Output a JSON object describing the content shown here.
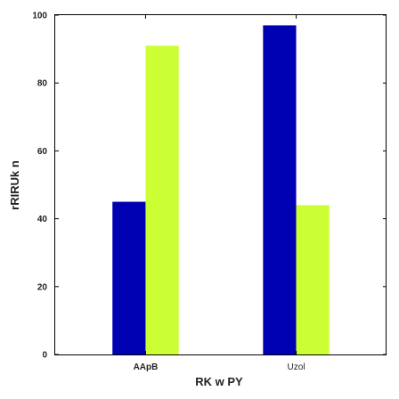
{
  "chart_data": {
    "type": "bar",
    "categories": [
      "AApB",
      "Uzol"
    ],
    "series": [
      {
        "values": [
          45,
          97
        ],
        "color": "#0000b3"
      },
      {
        "values": [
          91,
          44
        ],
        "color": "#ccff33"
      }
    ],
    "xlabel": "RK w PY",
    "ylabel": "rRIRUk n",
    "ylim": [
      0,
      100
    ],
    "yticks": [
      0,
      20,
      40,
      60,
      80,
      100
    ],
    "grid": false
  }
}
